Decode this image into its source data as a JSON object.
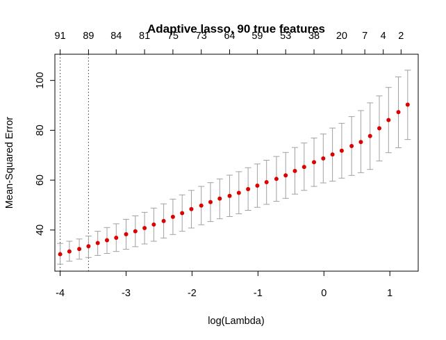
{
  "chart_data": {
    "type": "scatter",
    "title": "Adaptive lasso, 90 true features",
    "xlabel": "log(Lambda)",
    "ylabel": "Mean-Squared Error",
    "xlim": [
      -4.08,
      1.43
    ],
    "ylim": [
      23.5,
      110.5
    ],
    "grid": false,
    "legend": "none",
    "x_ticks": [
      -4,
      -3,
      -2,
      -1,
      0,
      1
    ],
    "y_ticks": [
      40,
      60,
      80,
      100
    ],
    "top_axis": {
      "x": [
        -4,
        -3.57,
        -3.15,
        -2.72,
        -2.29,
        -1.86,
        -1.43,
        -1.01,
        -0.58,
        -0.15,
        0.27,
        0.62,
        0.9,
        1.17
      ],
      "labels": [
        "91",
        "89",
        "84",
        "81",
        "75",
        "73",
        "64",
        "59",
        "53",
        "38",
        "20",
        "7",
        "4",
        "2"
      ]
    },
    "vlines": [
      -4.0,
      -3.57
    ],
    "point_color": "#dd0000",
    "errorbar_color": "#a0a0a0",
    "series": [
      {
        "x": [
          -4.0,
          -3.86,
          -3.71,
          -3.57,
          -3.43,
          -3.29,
          -3.15,
          -3.0,
          -2.86,
          -2.72,
          -2.58,
          -2.43,
          -2.29,
          -2.15,
          -2.01,
          -1.86,
          -1.72,
          -1.58,
          -1.43,
          -1.29,
          -1.15,
          -1.01,
          -0.87,
          -0.72,
          -0.58,
          -0.44,
          -0.3,
          -0.15,
          -0.01,
          0.13,
          0.27,
          0.42,
          0.56,
          0.7,
          0.84,
          0.98,
          1.13,
          1.27
        ],
        "y": [
          30.3,
          31.4,
          32.4,
          33.5,
          34.8,
          35.9,
          36.9,
          38.3,
          39.5,
          40.8,
          42.2,
          43.6,
          45.3,
          46.8,
          48.4,
          49.8,
          51.2,
          52.6,
          53.7,
          54.9,
          56.4,
          57.8,
          59.2,
          60.5,
          61.9,
          63.7,
          65.3,
          67.2,
          68.7,
          70.3,
          71.8,
          73.7,
          75.3,
          77.7,
          80.8,
          84.1,
          87.3,
          90.3
        ],
        "lower": [
          26.3,
          27.5,
          28.3,
          29.0,
          29.8,
          30.6,
          31.4,
          32.3,
          33.3,
          34.4,
          35.5,
          36.8,
          38.2,
          39.5,
          40.8,
          42.1,
          43.4,
          44.5,
          45.4,
          46.5,
          47.9,
          49.1,
          50.3,
          51.5,
          52.7,
          54.4,
          55.9,
          57.5,
          58.9,
          59.6,
          60.8,
          61.9,
          63.0,
          64.3,
          67.7,
          71.0,
          73.0,
          76.3
        ],
        "upper": [
          34.6,
          35.5,
          36.4,
          37.6,
          39.5,
          41.0,
          42.5,
          44.3,
          45.7,
          47.1,
          48.8,
          50.5,
          52.4,
          54.1,
          55.9,
          57.5,
          59.0,
          60.5,
          62.0,
          63.4,
          65.0,
          66.5,
          68.0,
          69.5,
          71.1,
          73.1,
          74.9,
          76.9,
          78.5,
          80.9,
          82.8,
          85.5,
          87.9,
          91.0,
          93.8,
          97.2,
          101.4,
          104.1
        ]
      }
    ]
  }
}
